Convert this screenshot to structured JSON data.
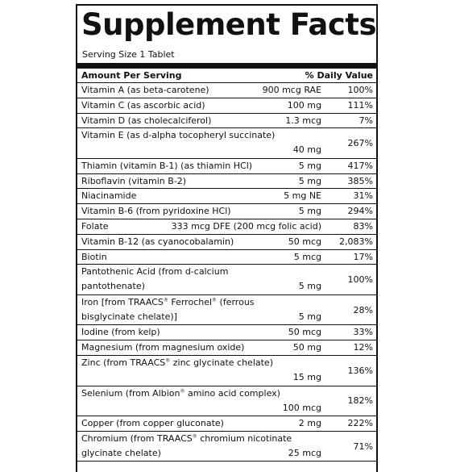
{
  "title": "Supplement Facts",
  "serving_size": "Serving Size 1 Tablet",
  "header": {
    "amount": "Amount Per Serving",
    "dv": "% Daily Value"
  },
  "nutrients": [
    {
      "name": "Vitamin A (as beta-carotene)",
      "amount": "900 mcg RAE",
      "dv": "100%"
    },
    {
      "name": "Vitamin C (as ascorbic acid)",
      "amount": "100 mg",
      "dv": "111%"
    },
    {
      "name": "Vitamin D (as cholecalciferol)",
      "amount": "1.3 mcg",
      "dv": "7%"
    },
    {
      "line1": "Vitamin E (as d-alpha tocopheryl succinate)",
      "line2": "",
      "amount": "40 mg",
      "dv": "267%"
    },
    {
      "name": "Thiamin (vitamin B-1) (as thiamin HCl)",
      "amount": "5 mg",
      "dv": "417%"
    },
    {
      "name": "Riboflavin (vitamin B-2)",
      "amount": "5 mg",
      "dv": "385%"
    },
    {
      "name": "Niacinamide",
      "amount": "5 mg NE",
      "dv": "31%"
    },
    {
      "name": "Vitamin B-6 (from pyridoxine HCl)",
      "amount": "5 mg",
      "dv": "294%"
    },
    {
      "name": "Folate",
      "amount": "333 mcg DFE (200 mcg folic acid)",
      "dv": "83%"
    },
    {
      "name": "Vitamin B-12 (as cyanocobalamin)",
      "amount": "50 mcg",
      "dv": "2,083%"
    },
    {
      "name": "Biotin",
      "amount": "5 mcg",
      "dv": "17%"
    },
    {
      "line1": "Pantothenic Acid (from d-calcium",
      "line2": "pantothenate)",
      "amount": "5 mg",
      "dv": "100%"
    },
    {
      "line1": "Iron [from TRAACS® Ferrochel® (ferrous",
      "line2": "bisglycinate chelate)]",
      "amount": "5 mg",
      "dv": "28%"
    },
    {
      "name": "Iodine (from kelp)",
      "amount": "50 mcg",
      "dv": "33%"
    },
    {
      "name": "Magnesium (from magnesium oxide)",
      "amount": "50 mg",
      "dv": "12%"
    },
    {
      "line1": "Zinc (from TRAACS® zinc glycinate chelate)",
      "line2": "",
      "amount": "15 mg",
      "dv": "136%"
    },
    {
      "line1": "Selenium (from Albion® amino acid complex)",
      "line2": "",
      "amount": "100 mcg",
      "dv": "182%"
    },
    {
      "name": "Copper (from copper gluconate)",
      "amount": "2 mg",
      "dv": "222%"
    },
    {
      "line1": "Chromium (from TRAACS® chromium nicotinate",
      "line2": "glycinate chelate)",
      "amount": "25 mcg",
      "dv": "71%"
    }
  ]
}
